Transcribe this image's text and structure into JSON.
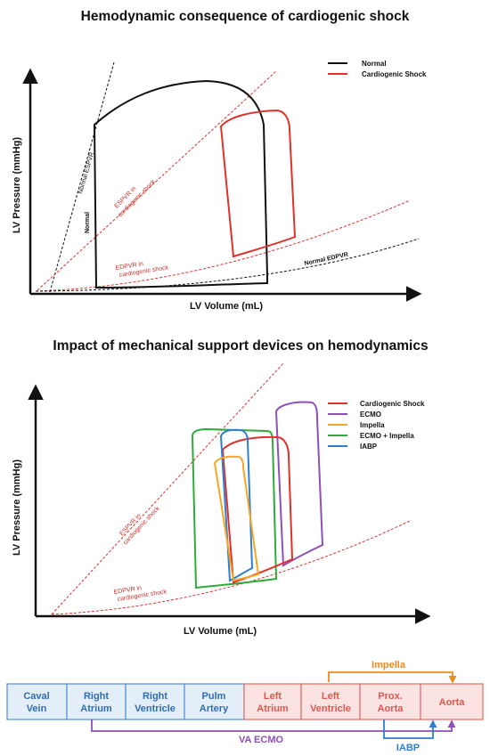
{
  "panel1": {
    "title": "Hemodynamic consequence of cardiogenic shock",
    "ylabel": "LV Pressure (mmHg)",
    "xlabel": "LV Volume (mL)",
    "legend": [
      {
        "label": "Normal",
        "color": "#111111"
      },
      {
        "label": "Cardiogenic Shock",
        "color": "#e0312b"
      }
    ],
    "line_labels": {
      "normal_espvr": "Normal ESPVR",
      "espvr_shock_1": "ESPVR in",
      "espvr_shock_2": "cardiogenic shock",
      "edpvr_shock_1": "EDPVR in",
      "edpvr_shock_2": "cardiogenic shock",
      "normal_edpvr": "Normal EDPVR",
      "normal_loop": "Normal"
    }
  },
  "panel2": {
    "title": "Impact of mechanical support devices on hemodynamics",
    "ylabel": "LV Pressure (mmHg)",
    "xlabel": "LV Volume (mL)",
    "legend": [
      {
        "label": "Cardiogenic Shock",
        "color": "#e0312b"
      },
      {
        "label": "ECMO",
        "color": "#8e4fb8"
      },
      {
        "label": "Impella",
        "color": "#f5a623"
      },
      {
        "label": "ECMO + Impella",
        "color": "#2eab3a"
      },
      {
        "label": "IABP",
        "color": "#2e7fd1"
      }
    ],
    "line_labels": {
      "espvr_shock_1": "ESPVR in",
      "espvr_shock_2": "cardiogenic shock",
      "edpvr_shock_1": "EDPVR in",
      "edpvr_shock_2": "cardiogenic shock"
    }
  },
  "circulation": {
    "boxes": [
      {
        "line1": "Caval",
        "line2": "Vein",
        "side": "venous"
      },
      {
        "line1": "Right",
        "line2": "Atrium",
        "side": "venous"
      },
      {
        "line1": "Right",
        "line2": "Ventricle",
        "side": "venous"
      },
      {
        "line1": "Pulm",
        "line2": "Artery",
        "side": "venous"
      },
      {
        "line1": "Left",
        "line2": "Atrium",
        "side": "arterial"
      },
      {
        "line1": "Left",
        "line2": "Ventricle",
        "side": "arterial"
      },
      {
        "line1": "Prox.",
        "line2": "Aorta",
        "side": "arterial"
      },
      {
        "line1": "Aorta",
        "line2": "",
        "side": "arterial"
      }
    ],
    "devices": {
      "impella": {
        "label": "Impella",
        "color": "#f08a1e"
      },
      "va_ecmo": {
        "label": "VA ECMO",
        "color": "#8e4fb8"
      },
      "iabp": {
        "label": "IABP",
        "color": "#2e7fd1"
      }
    },
    "colors": {
      "venous_fill": "#e4eef8",
      "venous_stroke": "#4f8fd0",
      "venous_text": "#2f6db4",
      "arterial_fill": "#fbe3e1",
      "arterial_stroke": "#e36a63",
      "arterial_text": "#e0574f"
    }
  }
}
